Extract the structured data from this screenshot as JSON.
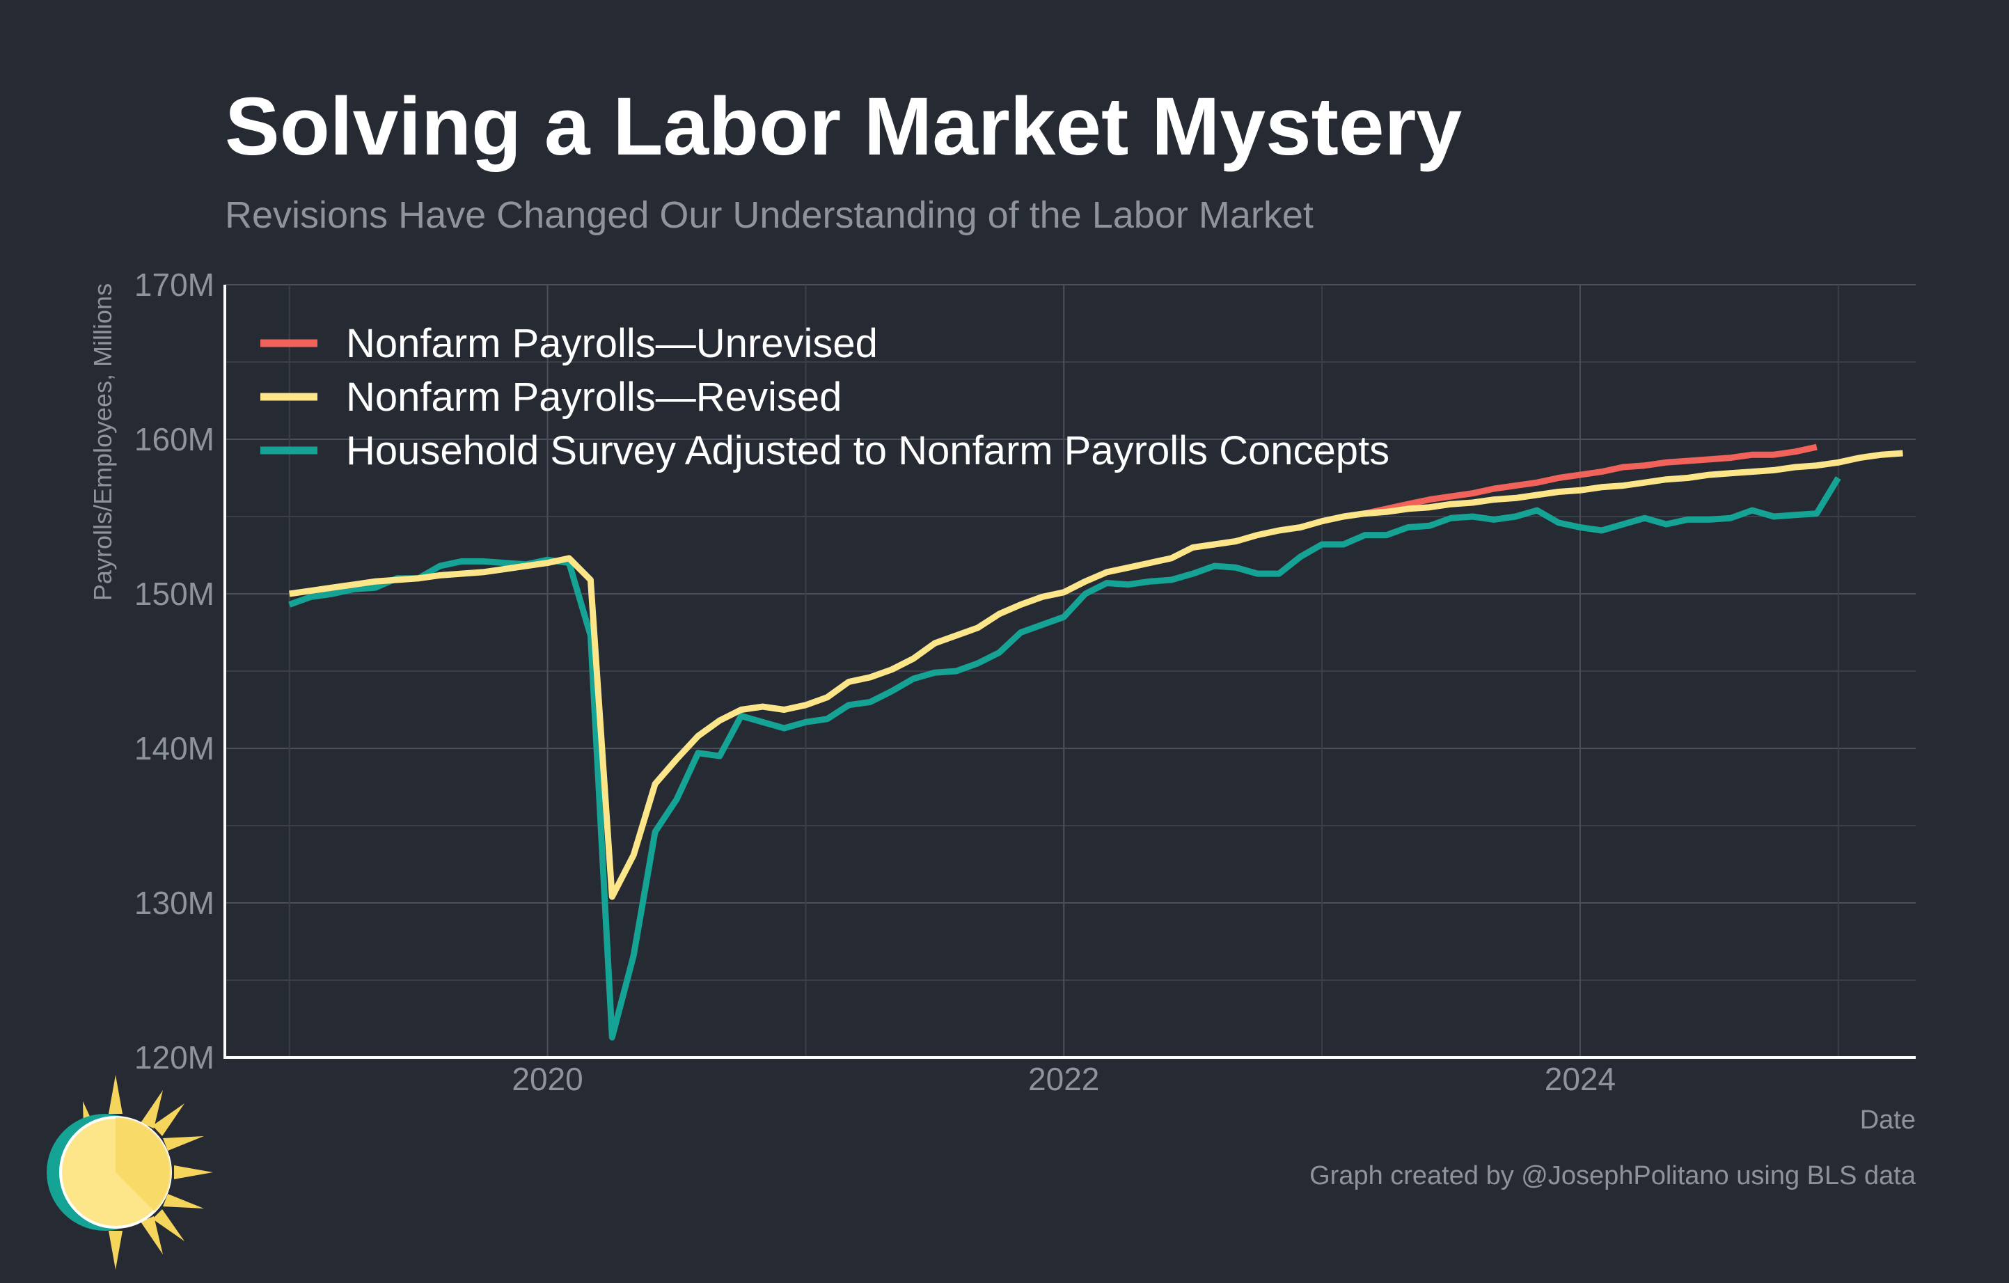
{
  "chart_data": {
    "type": "line",
    "title": "Solving a Labor Market Mystery",
    "subtitle": "Revisions Have Changed Our Understanding of the Labor Market",
    "xlabel": "Date",
    "ylabel": "Payrolls/Employees, Millions",
    "ylim": [
      120,
      170
    ],
    "y_ticks": [
      120,
      130,
      140,
      150,
      160,
      170
    ],
    "y_tick_labels": [
      "120M",
      "130M",
      "140M",
      "150M",
      "160M",
      "170M"
    ],
    "x_ticks": [
      "2020-01",
      "2022-01",
      "2024-01"
    ],
    "x_tick_labels": [
      "2020",
      "2022",
      "2024"
    ],
    "grid": true,
    "legend_placement": "top-left",
    "caption": "Graph created by @JosephPolitano using BLS data",
    "series": [
      {
        "name": "Nonfarm Payrolls—Unrevised",
        "color": "#f0625a",
        "start": "2023-03",
        "values": [
          155.2,
          155.5,
          155.8,
          156.1,
          156.3,
          156.5,
          156.8,
          157.0,
          157.2,
          157.5,
          157.7,
          157.9,
          158.2,
          158.3,
          158.5,
          158.6,
          158.7,
          158.8,
          159.0,
          159.0,
          159.2,
          159.5
        ]
      },
      {
        "name": "Nonfarm Payrolls—Revised",
        "color": "#fde68a",
        "start": "2019-01",
        "values": [
          150.0,
          150.2,
          150.4,
          150.6,
          150.8,
          150.9,
          151.0,
          151.2,
          151.3,
          151.4,
          151.6,
          151.8,
          152.0,
          152.3,
          150.9,
          130.4,
          133.1,
          137.7,
          139.3,
          140.8,
          141.8,
          142.5,
          142.7,
          142.5,
          142.8,
          143.3,
          144.3,
          144.6,
          145.1,
          145.8,
          146.8,
          147.3,
          147.8,
          148.7,
          149.3,
          149.8,
          150.1,
          150.8,
          151.4,
          151.7,
          152.0,
          152.3,
          153.0,
          153.2,
          153.4,
          153.8,
          154.1,
          154.3,
          154.7,
          155.0,
          155.2,
          155.3,
          155.5,
          155.6,
          155.8,
          155.9,
          156.1,
          156.2,
          156.4,
          156.6,
          156.7,
          156.9,
          157.0,
          157.2,
          157.4,
          157.5,
          157.7,
          157.8,
          157.9,
          158.0,
          158.2,
          158.3,
          158.5,
          158.8,
          159.0,
          159.1
        ]
      },
      {
        "name": "Household Survey Adjusted to Nonfarm Payrolls Concepts",
        "color": "#14a394",
        "start": "2019-01",
        "values": [
          149.3,
          149.8,
          150.0,
          150.3,
          150.4,
          151.0,
          151.0,
          151.8,
          152.1,
          152.1,
          152.0,
          151.9,
          152.2,
          152.0,
          147.3,
          121.3,
          126.6,
          134.6,
          136.7,
          139.7,
          139.5,
          142.1,
          141.7,
          141.3,
          141.7,
          141.9,
          142.8,
          143.0,
          143.7,
          144.5,
          144.9,
          145.0,
          145.5,
          146.2,
          147.5,
          148.0,
          148.5,
          150.0,
          150.7,
          150.6,
          150.8,
          150.9,
          151.3,
          151.8,
          151.7,
          151.3,
          151.3,
          152.4,
          153.2,
          153.2,
          153.8,
          153.8,
          154.3,
          154.4,
          154.9,
          155.0,
          154.8,
          155.0,
          155.4,
          154.6,
          154.3,
          154.1,
          154.5,
          154.9,
          154.5,
          154.8,
          154.8,
          154.9,
          155.4,
          155.0,
          155.1,
          155.2,
          157.5
        ]
      }
    ]
  },
  "logo": {
    "name": "sun-logo",
    "colors": {
      "ring": "#14a394",
      "sun": "#fde68a",
      "rays": "#f6d55c"
    }
  }
}
